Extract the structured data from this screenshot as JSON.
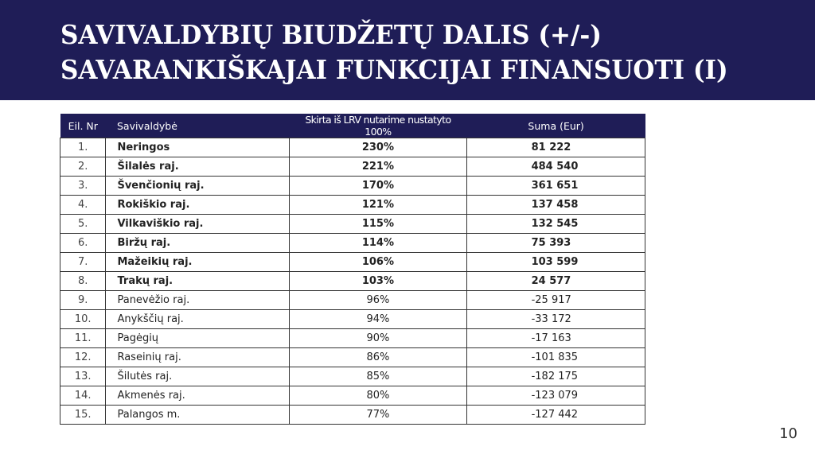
{
  "slide": {
    "title_line1": "SAVIVALDYBIŲ BIUDŽETŲ DALIS (+/-)",
    "title_line2": "SAVARANKIŠKAJAI FUNKCIJAI FINANSUOTI (I)",
    "page_number": "10",
    "colors": {
      "header_bg": "#1f1d57",
      "header_text": "#ffffff"
    }
  },
  "table": {
    "headers": [
      "Eil. Nr",
      "Savivaldybė",
      "Skirta iš LRV nutarime nustatyto 100%",
      "Suma (Eur)"
    ],
    "rows": [
      {
        "nr": "1.",
        "name": "Neringos",
        "pct": "230%",
        "sum": "81 222",
        "bold": true
      },
      {
        "nr": "2.",
        "name": "Šilalės raj.",
        "pct": "221%",
        "sum": "484 540",
        "bold": true
      },
      {
        "nr": "3.",
        "name": "Švenčionių raj.",
        "pct": "170%",
        "sum": "361 651",
        "bold": true
      },
      {
        "nr": "4.",
        "name": "Rokiškio raj.",
        "pct": "121%",
        "sum": "137 458",
        "bold": true
      },
      {
        "nr": "5.",
        "name": "Vilkaviškio raj.",
        "pct": "115%",
        "sum": "132 545",
        "bold": true
      },
      {
        "nr": "6.",
        "name": "Biržų raj.",
        "pct": "114%",
        "sum": "75 393",
        "bold": true
      },
      {
        "nr": "7.",
        "name": "Mažeikių raj.",
        "pct": "106%",
        "sum": "103 599",
        "bold": true
      },
      {
        "nr": "8.",
        "name": "Trakų raj.",
        "pct": "103%",
        "sum": "24 577",
        "bold": true
      },
      {
        "nr": "9.",
        "name": "Panevėžio raj.",
        "pct": "96%",
        "sum": "-25 917",
        "bold": false
      },
      {
        "nr": "10.",
        "name": "Anykščių raj.",
        "pct": "94%",
        "sum": "-33 172",
        "bold": false
      },
      {
        "nr": "11.",
        "name": "Pagėgių",
        "pct": "90%",
        "sum": "-17 163",
        "bold": false
      },
      {
        "nr": "12.",
        "name": "Raseinių raj.",
        "pct": "86%",
        "sum": "-101 835",
        "bold": false
      },
      {
        "nr": "13.",
        "name": "Šilutės raj.",
        "pct": "85%",
        "sum": "-182 175",
        "bold": false
      },
      {
        "nr": "14.",
        "name": "Akmenės raj.",
        "pct": "80%",
        "sum": "-123 079",
        "bold": false
      },
      {
        "nr": "15.",
        "name": "Palangos m.",
        "pct": "77%",
        "sum": "-127 442",
        "bold": false
      }
    ]
  }
}
